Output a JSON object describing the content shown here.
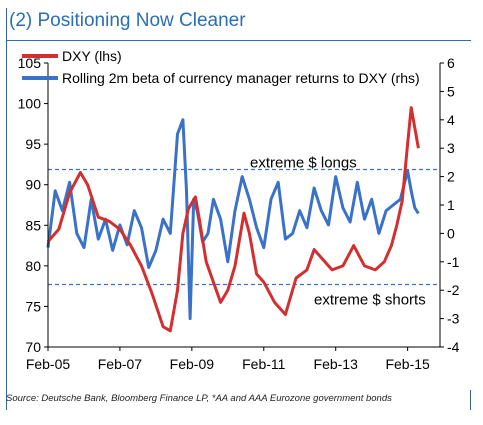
{
  "title": "(2)  Positioning Now Cleaner",
  "source": "Source: Deutsche Bank, Bloomberg Finance LP, *AA and AAA Eurozone government bonds",
  "chart_data": {
    "type": "line",
    "x_tick_labels": [
      "Feb-05",
      "Feb-07",
      "Feb-09",
      "Feb-11",
      "Feb-13",
      "Feb-15"
    ],
    "xlim": [
      2005.0,
      2015.9
    ],
    "y_left": {
      "label": "",
      "ticks": [
        70,
        75,
        80,
        85,
        90,
        95,
        100,
        105
      ],
      "ylim": [
        70,
        105
      ]
    },
    "y_right": {
      "label": "",
      "ticks": [
        -4,
        -3,
        -2,
        -1,
        0,
        1,
        2,
        3,
        4,
        5,
        6
      ],
      "ylim": [
        -4,
        6
      ]
    },
    "legend": {
      "placement": "top-left",
      "entries": [
        "DXY (lhs)",
        "Rolling 2m beta of currency manager returns to DXY (rhs)"
      ]
    },
    "annotations": [
      {
        "text": "extreme  $ longs",
        "y_rhs": 2.25
      },
      {
        "text": "extreme $ shorts",
        "y_rhs": -1.8
      }
    ],
    "threshold_lines_rhs": [
      2.25,
      -1.8
    ],
    "series": [
      {
        "name": "DXY (lhs)",
        "axis": "left",
        "color": "#d32f2f",
        "x": [
          2005.0,
          2005.3,
          2005.6,
          2005.9,
          2006.1,
          2006.4,
          2006.7,
          2007.0,
          2007.3,
          2007.6,
          2007.9,
          2008.2,
          2008.4,
          2008.6,
          2008.75,
          2008.9,
          2009.1,
          2009.2,
          2009.4,
          2009.6,
          2009.8,
          2010.0,
          2010.2,
          2010.45,
          2010.6,
          2010.8,
          2011.0,
          2011.3,
          2011.6,
          2011.9,
          2012.2,
          2012.4,
          2012.6,
          2012.9,
          2013.2,
          2013.5,
          2013.8,
          2014.1,
          2014.35,
          2014.55,
          2014.7,
          2014.85,
          2015.0,
          2015.1,
          2015.2,
          2015.3
        ],
        "y": [
          83.0,
          84.5,
          89.0,
          91.5,
          90.0,
          86.0,
          85.5,
          84.5,
          82.5,
          80.0,
          76.5,
          72.5,
          72.0,
          77.0,
          84.0,
          87.0,
          88.5,
          86.0,
          80.5,
          78.0,
          75.5,
          77.0,
          80.0,
          86.5,
          84.0,
          79.0,
          78.0,
          75.5,
          74.0,
          78.5,
          79.5,
          82.0,
          81.0,
          79.5,
          80.0,
          82.5,
          80.0,
          79.5,
          80.5,
          82.5,
          85.0,
          88.0,
          95.0,
          99.5,
          97.0,
          94.5
        ]
      },
      {
        "name": "Rolling 2m beta of currency manager returns to DXY (rhs)",
        "axis": "right",
        "color": "#3a72c9",
        "x": [
          2005.0,
          2005.2,
          2005.4,
          2005.6,
          2005.8,
          2006.0,
          2006.2,
          2006.4,
          2006.6,
          2006.8,
          2007.0,
          2007.2,
          2007.4,
          2007.6,
          2007.8,
          2008.0,
          2008.2,
          2008.4,
          2008.6,
          2008.75,
          2008.85,
          2008.95,
          2009.05,
          2009.15,
          2009.3,
          2009.45,
          2009.6,
          2009.8,
          2010.0,
          2010.2,
          2010.4,
          2010.6,
          2010.8,
          2011.0,
          2011.2,
          2011.4,
          2011.6,
          2011.8,
          2012.0,
          2012.2,
          2012.4,
          2012.6,
          2012.8,
          2013.0,
          2013.2,
          2013.4,
          2013.6,
          2013.8,
          2014.0,
          2014.2,
          2014.4,
          2014.6,
          2014.8,
          2015.0,
          2015.1,
          2015.2,
          2015.3
        ],
        "y": [
          -0.5,
          1.5,
          0.8,
          1.8,
          0.0,
          -0.5,
          1.2,
          -0.2,
          0.5,
          -0.6,
          0.3,
          -0.4,
          0.8,
          0.2,
          -1.2,
          -0.6,
          0.5,
          0.0,
          3.5,
          4.0,
          1.5,
          -3.0,
          1.2,
          0.8,
          -0.3,
          0.0,
          1.2,
          0.5,
          -1.0,
          0.8,
          2.0,
          1.2,
          0.2,
          -0.5,
          1.2,
          1.8,
          -0.2,
          0.0,
          0.8,
          0.2,
          1.6,
          0.8,
          0.3,
          2.0,
          0.9,
          0.4,
          1.8,
          0.5,
          1.2,
          0.0,
          0.8,
          1.0,
          1.2,
          2.2,
          1.5,
          0.9,
          0.7
        ]
      }
    ]
  }
}
